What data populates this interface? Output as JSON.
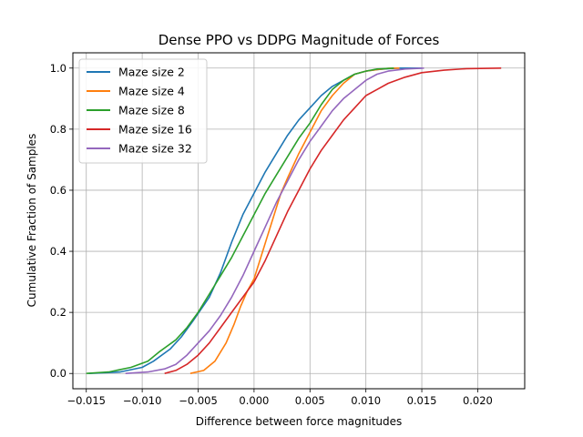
{
  "chart_data": {
    "type": "line",
    "title": "Dense PPO vs DDPG Magnitude of Forces",
    "xlabel": "Difference between force magnitudes",
    "ylabel": "Cumulative Fraction of Samples",
    "xlim": [
      -0.0162,
      0.0242
    ],
    "ylim": [
      -0.05,
      1.05
    ],
    "xticks": [
      -0.015,
      -0.01,
      -0.005,
      0.0,
      0.005,
      0.01,
      0.015,
      0.02
    ],
    "xtick_labels": [
      "−0.015",
      "−0.010",
      "−0.005",
      "0.000",
      "0.005",
      "0.010",
      "0.015",
      "0.020"
    ],
    "yticks": [
      0.0,
      0.2,
      0.4,
      0.6,
      0.8,
      1.0
    ],
    "ytick_labels": [
      "0.0",
      "0.2",
      "0.4",
      "0.6",
      "0.8",
      "1.0"
    ],
    "grid": true,
    "legend_position": "upper-left",
    "series": [
      {
        "name": "Maze size 2",
        "color": "#1f77b4",
        "x": [
          -0.0148,
          -0.012,
          -0.01,
          -0.009,
          -0.0075,
          -0.0065,
          -0.0055,
          -0.004,
          -0.003,
          -0.002,
          -0.001,
          0.0,
          0.001,
          0.002,
          0.003,
          0.004,
          0.005,
          0.006,
          0.007,
          0.008,
          0.009,
          0.01,
          0.011,
          0.012,
          0.013,
          0.015
        ],
        "y": [
          0.0,
          0.005,
          0.02,
          0.04,
          0.08,
          0.12,
          0.17,
          0.25,
          0.33,
          0.43,
          0.52,
          0.59,
          0.66,
          0.72,
          0.78,
          0.83,
          0.87,
          0.91,
          0.94,
          0.96,
          0.98,
          0.99,
          0.995,
          0.998,
          1.0,
          1.0
        ]
      },
      {
        "name": "Maze size 4",
        "color": "#ff7f0e",
        "x": [
          -0.0057,
          -0.0045,
          -0.0035,
          -0.0025,
          -0.0018,
          -0.0012,
          -0.0006,
          0.0,
          0.0006,
          0.0012,
          0.0018,
          0.0024,
          0.003,
          0.004,
          0.005,
          0.006,
          0.007,
          0.008,
          0.009,
          0.01,
          0.011,
          0.012,
          0.013
        ],
        "y": [
          0.0,
          0.01,
          0.04,
          0.1,
          0.16,
          0.22,
          0.27,
          0.31,
          0.38,
          0.45,
          0.52,
          0.59,
          0.64,
          0.72,
          0.79,
          0.86,
          0.91,
          0.95,
          0.98,
          0.99,
          0.995,
          0.999,
          1.0
        ]
      },
      {
        "name": "Maze size 8",
        "color": "#2ca02c",
        "x": [
          -0.015,
          -0.013,
          -0.011,
          -0.0095,
          -0.0085,
          -0.007,
          -0.006,
          -0.005,
          -0.004,
          -0.003,
          -0.002,
          -0.001,
          0.0,
          0.001,
          0.002,
          0.003,
          0.004,
          0.005,
          0.006,
          0.007,
          0.008,
          0.009,
          0.01,
          0.011,
          0.0125
        ],
        "y": [
          0.0,
          0.005,
          0.02,
          0.04,
          0.07,
          0.11,
          0.15,
          0.2,
          0.26,
          0.32,
          0.38,
          0.45,
          0.52,
          0.59,
          0.65,
          0.71,
          0.77,
          0.82,
          0.88,
          0.93,
          0.96,
          0.98,
          0.99,
          0.997,
          1.0
        ]
      },
      {
        "name": "Maze size 16",
        "color": "#d62728",
        "x": [
          -0.008,
          -0.007,
          -0.006,
          -0.005,
          -0.004,
          -0.003,
          -0.002,
          -0.001,
          0.0,
          0.001,
          0.002,
          0.003,
          0.004,
          0.005,
          0.006,
          0.007,
          0.008,
          0.009,
          0.01,
          0.011,
          0.012,
          0.0135,
          0.015,
          0.017,
          0.019,
          0.0221
        ],
        "y": [
          0.0,
          0.01,
          0.03,
          0.06,
          0.1,
          0.15,
          0.2,
          0.25,
          0.3,
          0.37,
          0.45,
          0.53,
          0.6,
          0.67,
          0.73,
          0.78,
          0.83,
          0.87,
          0.91,
          0.93,
          0.95,
          0.97,
          0.985,
          0.993,
          0.998,
          1.0
        ]
      },
      {
        "name": "Maze size 32",
        "color": "#9467bd",
        "x": [
          -0.0115,
          -0.0095,
          -0.008,
          -0.007,
          -0.006,
          -0.005,
          -0.004,
          -0.003,
          -0.002,
          -0.001,
          0.0,
          0.001,
          0.002,
          0.003,
          0.004,
          0.005,
          0.006,
          0.007,
          0.008,
          0.009,
          0.01,
          0.011,
          0.012,
          0.0135,
          0.0152
        ],
        "y": [
          0.0,
          0.005,
          0.015,
          0.03,
          0.06,
          0.1,
          0.14,
          0.19,
          0.25,
          0.32,
          0.4,
          0.48,
          0.56,
          0.63,
          0.7,
          0.76,
          0.81,
          0.86,
          0.9,
          0.93,
          0.96,
          0.98,
          0.99,
          0.997,
          1.0
        ]
      }
    ]
  }
}
